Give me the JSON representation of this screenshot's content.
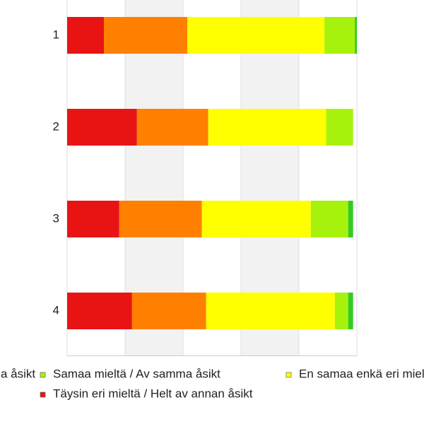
{
  "chart_data": {
    "type": "stacked-barh",
    "categories": [
      "1",
      "2",
      "3",
      "4"
    ],
    "series": [
      {
        "name": "Täysin eri mieltä / Helt av annan åsikt",
        "color": "#e81414",
        "values": [
          12.7,
          24.1,
          18.0,
          22.4
        ]
      },
      {
        "color": "#ff8000",
        "values": [
          28.8,
          24.6,
          28.5,
          25.6
        ]
      },
      {
        "name": "En samaa enkä eri mieltä / Varken eller",
        "color": "#ffff00",
        "values": [
          47.3,
          40.7,
          37.6,
          44.4
        ]
      },
      {
        "name": "Samaa mieltä / Av samma åsikt",
        "color": "#a6f20d",
        "values": [
          10.5,
          9.3,
          12.9,
          4.6
        ]
      },
      {
        "name": "Täysin samaa mieltä / Helt av samma åsikt",
        "color": "#33cc22",
        "values": [
          0.7,
          0,
          1.7,
          1.7
        ]
      }
    ],
    "xlim": [
      0,
      100
    ],
    "xticks": [
      0,
      20,
      40,
      60,
      80,
      100
    ],
    "grid": true
  }
}
